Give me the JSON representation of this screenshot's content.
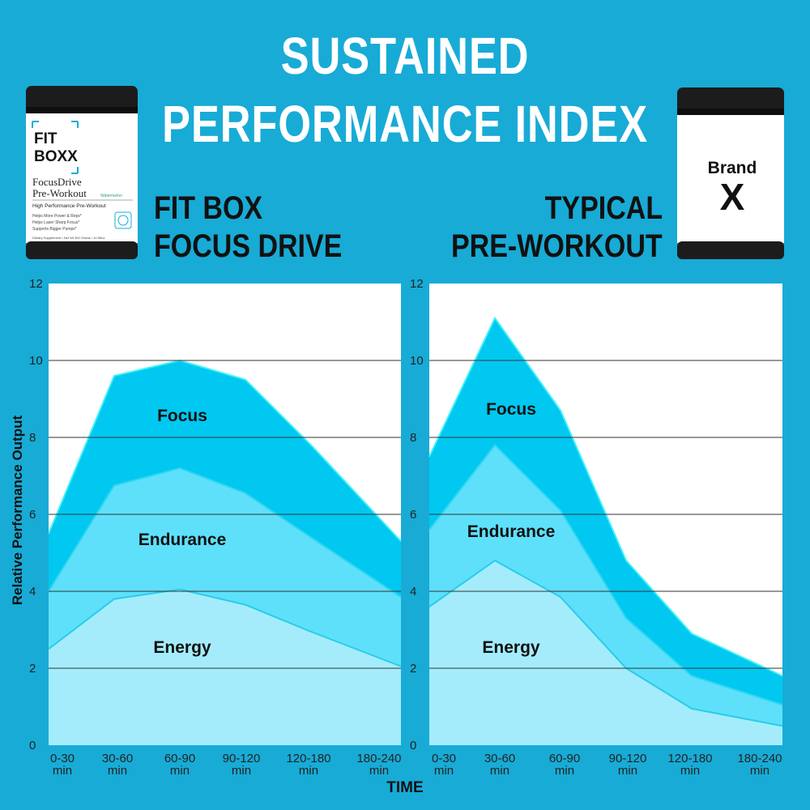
{
  "title": {
    "line1": "SUSTAINED",
    "line2": "PERFORMANCE INDEX"
  },
  "left_product": {
    "name_line1": "FIT BOX",
    "name_line2": "FOCUS DRIVE",
    "jar": {
      "logo_line1": "FIT",
      "logo_line2": "BOXX",
      "product_line1": "FocusDrive",
      "product_line2": "Pre-Workout",
      "flavor": "Watermelon",
      "tagline": "High Performance Pre-Workout",
      "bullets": [
        "Helps More Power & Reps*",
        "Helps Laser Sharp Focus*",
        "Supports Bigger Pumps*"
      ],
      "footer": "Dietary Supplement • Net Wt 300 Grams / 10.58oz"
    }
  },
  "right_product": {
    "name_line1": "TYPICAL",
    "name_line2": "PRE-WORKOUT",
    "jar": {
      "label_line1": "Brand",
      "label_line2": "X"
    }
  },
  "colors": {
    "background": "#18abd6",
    "focus": "#00c8f0",
    "endurance": "#5ee0fa",
    "energy": "#a4ecfc",
    "grid": "#333333"
  },
  "chart_data": [
    {
      "type": "area",
      "stacked": false,
      "product": "FIT BOX FOCUS DRIVE",
      "categories": [
        "0-30 min",
        "30-60 min",
        "60-90 min",
        "90-120 min",
        "120-180 min",
        "180-240 min"
      ],
      "x": [
        0,
        1,
        2,
        3,
        4,
        5.5
      ],
      "series": [
        {
          "name": "Focus",
          "values": [
            5.5,
            9.6,
            10.0,
            9.5,
            7.8,
            5.3
          ]
        },
        {
          "name": "Endurance",
          "values": [
            4.0,
            6.75,
            7.2,
            6.55,
            5.4,
            3.85
          ]
        },
        {
          "name": "Energy",
          "values": [
            2.5,
            3.8,
            4.05,
            3.65,
            2.95,
            2.05
          ]
        }
      ],
      "ylim": [
        0,
        12
      ],
      "yticks": [
        0,
        2,
        4,
        6,
        8,
        10,
        12
      ],
      "ylabel": "Relative Performance Output",
      "xlabel": "TIME",
      "grid": true
    },
    {
      "type": "area",
      "stacked": false,
      "product": "TYPICAL PRE-WORKOUT",
      "categories": [
        "0-30 min",
        "30-60 min",
        "60-90 min",
        "90-120 min",
        "120-180 min",
        "180-240 min"
      ],
      "x": [
        0,
        1,
        2,
        3,
        4,
        5.5
      ],
      "series": [
        {
          "name": "Focus",
          "values": [
            7.5,
            11.1,
            8.7,
            4.8,
            2.9,
            1.8
          ]
        },
        {
          "name": "Endurance",
          "values": [
            5.6,
            7.8,
            6.1,
            3.3,
            1.8,
            1.05
          ]
        },
        {
          "name": "Energy",
          "values": [
            3.6,
            4.8,
            3.85,
            2.0,
            0.95,
            0.5
          ]
        }
      ],
      "ylim": [
        0,
        12
      ],
      "yticks": [
        0,
        2,
        4,
        6,
        8,
        10,
        12
      ],
      "ylabel": "Relative Performance Output",
      "xlabel": "TIME",
      "grid": true
    }
  ]
}
